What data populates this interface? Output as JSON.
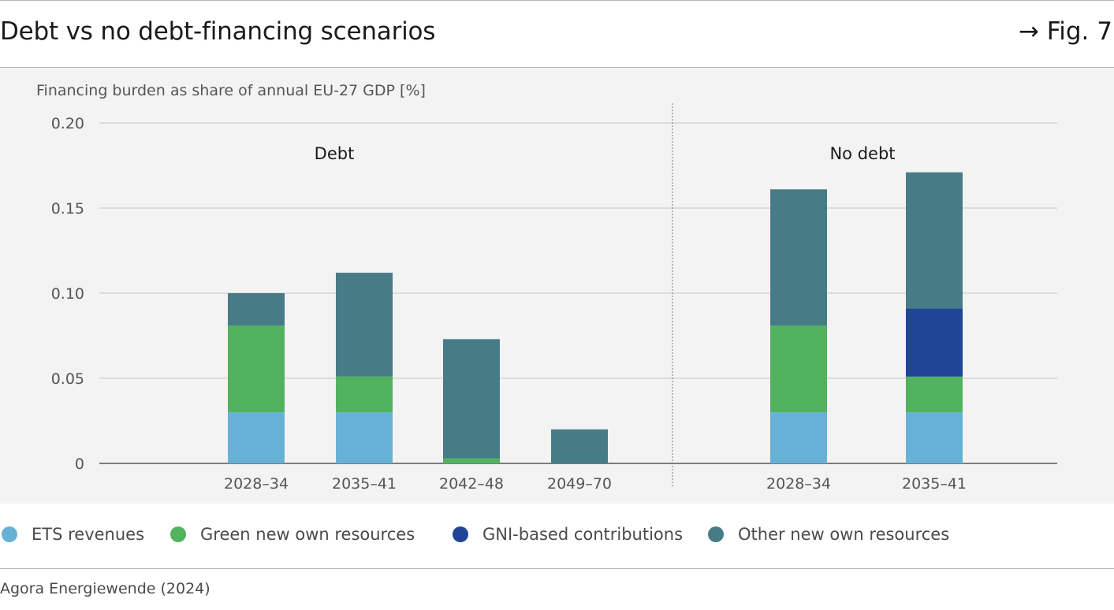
{
  "header": {
    "title": "Debt vs no debt-financing scenarios",
    "fig_ref": "→ Fig. 7"
  },
  "colors": {
    "ets": "#67b1d6",
    "green": "#52b35f",
    "gni": "#1f4696",
    "other": "#477c87",
    "panel": "#f3f3f3",
    "grid": "#dcdcdc",
    "axis": "#555555",
    "tick_text": "#555555"
  },
  "legend": [
    {
      "label": "ETS revenues",
      "color": "#67b1d6"
    },
    {
      "label": "Green new own resources",
      "color": "#52b35f"
    },
    {
      "label": "GNI-based contributions",
      "color": "#1f4696"
    },
    {
      "label": "Other new own resources",
      "color": "#477c87"
    }
  ],
  "source": "Agora Energiewende (2024)",
  "chart_data": {
    "type": "bar",
    "stacked": true,
    "ylabel": "Financing burden as share of annual EU-27 GDP [%]",
    "ylim": [
      0,
      0.2
    ],
    "yticks": [
      0,
      0.05,
      0.1,
      0.15,
      0.2
    ],
    "ytick_labels": [
      "0",
      "0.05",
      "0.10",
      "0.15",
      "0.20"
    ],
    "grid": true,
    "legend_position": "bottom",
    "groups": [
      {
        "label": "Debt",
        "categories": [
          "2028–34",
          "2035–41",
          "2042–48",
          "2049–70"
        ]
      },
      {
        "label": "No debt",
        "categories": [
          "2028–34",
          "2035–41"
        ]
      }
    ],
    "categories": [
      "2028–34",
      "2035–41",
      "2042–48",
      "2049–70",
      "2028–34",
      "2035–41"
    ],
    "series": [
      {
        "name": "ETS revenues",
        "values": [
          0.03,
          0.03,
          0,
          0,
          0.03,
          0.03
        ]
      },
      {
        "name": "Green new own resources",
        "values": [
          0.051,
          0.021,
          0.003,
          0,
          0.051,
          0.021
        ]
      },
      {
        "name": "GNI-based contributions",
        "values": [
          0,
          0,
          0,
          0,
          0,
          0.04
        ]
      },
      {
        "name": "Other new own resources",
        "values": [
          0.019,
          0.061,
          0.07,
          0.02,
          0.08,
          0.08
        ]
      }
    ]
  }
}
